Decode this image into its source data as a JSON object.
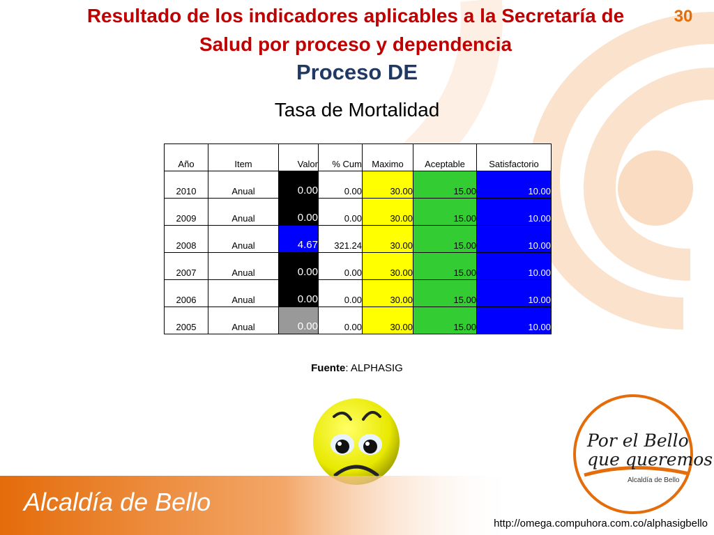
{
  "header": {
    "title_line1": "Resultado de los indicadores aplicables a la Secretaría de",
    "title_line2": "Salud  por proceso y dependencia",
    "page_number": "30",
    "process": "Proceso DE",
    "subtitle": "Tasa de Mortalidad"
  },
  "table": {
    "headers": [
      "Año",
      "Item",
      "Valor",
      "% Cum",
      "Maximo",
      "Aceptable",
      "Satisfactorio"
    ],
    "rows": [
      {
        "year": "2010",
        "item": "Anual",
        "valor": "0.00",
        "cum": "0.00",
        "max": "30.00",
        "acc": "15.00",
        "sat": "10.00",
        "valor_color": "black"
      },
      {
        "year": "2009",
        "item": "Anual",
        "valor": "0.00",
        "cum": "0.00",
        "max": "30.00",
        "acc": "15.00",
        "sat": "10.00",
        "valor_color": "black"
      },
      {
        "year": "2008",
        "item": "Anual",
        "valor": "4.67",
        "cum": "321.24",
        "max": "30.00",
        "acc": "15.00",
        "sat": "10.00",
        "valor_color": "blue"
      },
      {
        "year": "2007",
        "item": "Anual",
        "valor": "0.00",
        "cum": "0.00",
        "max": "30.00",
        "acc": "15.00",
        "sat": "10.00",
        "valor_color": "black"
      },
      {
        "year": "2006",
        "item": "Anual",
        "valor": "0.00",
        "cum": "0.00",
        "max": "30.00",
        "acc": "15.00",
        "sat": "10.00",
        "valor_color": "black"
      },
      {
        "year": "2005",
        "item": "Anual",
        "valor": "0.00",
        "cum": "0.00",
        "max": "30.00",
        "acc": "15.00",
        "sat": "10.00",
        "valor_color": "gray"
      }
    ]
  },
  "source": {
    "label": "Fuente",
    "value": ": ALPHASIG"
  },
  "footer": {
    "org_name": "Alcaldía de Bello",
    "url": "http://omega.compuhora.com.co/alphasigbello"
  },
  "logo": {
    "line1": "Por el Bello",
    "line2": "que queremos",
    "line3": "Alcaldía de Bello"
  },
  "colors": {
    "title": "#c00000",
    "process": "#1f3864",
    "maximo": "#ffff00",
    "aceptable": "#33cc33",
    "satisfactorio": "#0000ff",
    "brand_orange": "#e46c0a"
  },
  "icons": {
    "status": "sad-face-icon"
  }
}
